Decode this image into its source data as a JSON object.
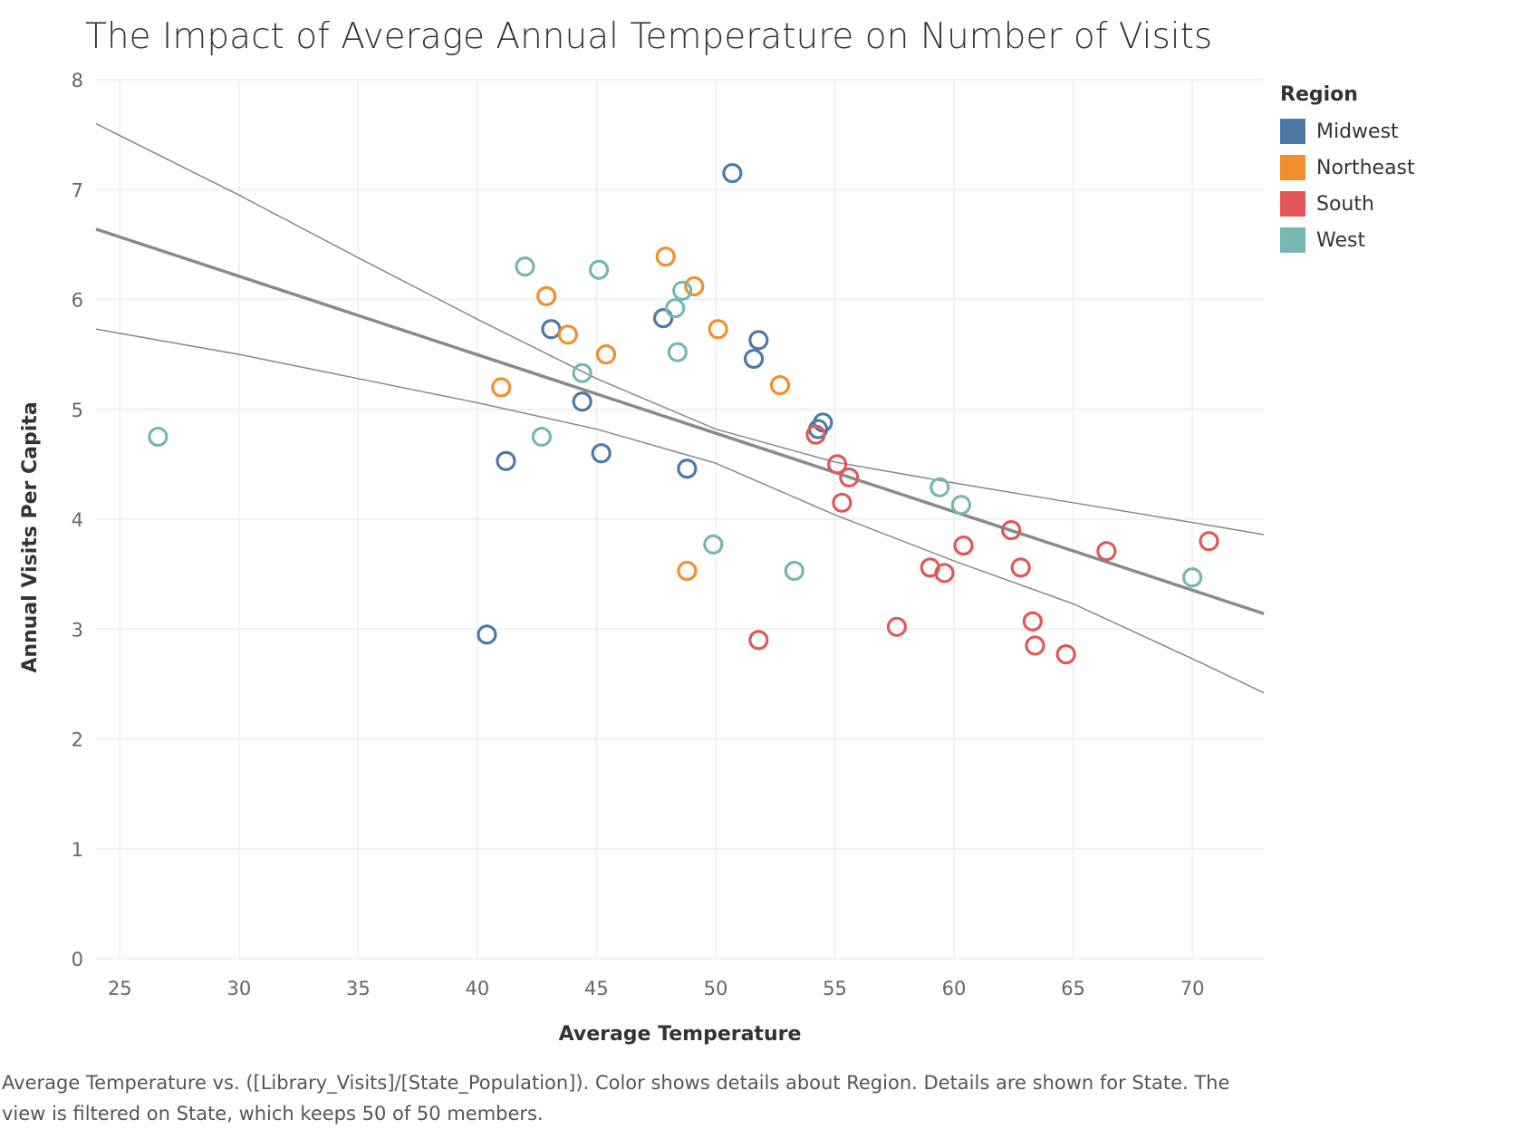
{
  "chart_data": {
    "type": "scatter",
    "title": "The Impact of Average Annual Temperature on Number of Visits",
    "xlabel": "Average Temperature",
    "ylabel": "Annual Visits Per Capita",
    "xlim": [
      24,
      73
    ],
    "ylim": [
      0,
      8
    ],
    "x_ticks": [
      25,
      30,
      35,
      40,
      45,
      50,
      55,
      60,
      65,
      70
    ],
    "y_ticks": [
      0,
      1,
      2,
      3,
      4,
      5,
      6,
      7,
      8
    ],
    "grid": true,
    "legend": {
      "title": "Region",
      "position": "right"
    },
    "series": [
      {
        "name": "Midwest",
        "color": "#4e79a7",
        "points": [
          [
            50.7,
            7.15
          ],
          [
            43.1,
            5.73
          ],
          [
            47.8,
            5.83
          ],
          [
            51.8,
            5.63
          ],
          [
            51.6,
            5.46
          ],
          [
            44.4,
            5.07
          ],
          [
            54.5,
            4.88
          ],
          [
            54.3,
            4.82
          ],
          [
            41.2,
            4.53
          ],
          [
            45.2,
            4.6
          ],
          [
            48.8,
            4.46
          ],
          [
            40.4,
            2.95
          ]
        ]
      },
      {
        "name": "Northeast",
        "color": "#f28e2b",
        "points": [
          [
            47.9,
            6.39
          ],
          [
            49.1,
            6.12
          ],
          [
            42.9,
            6.03
          ],
          [
            50.1,
            5.73
          ],
          [
            43.8,
            5.68
          ],
          [
            45.4,
            5.5
          ],
          [
            52.7,
            5.22
          ],
          [
            41.0,
            5.2
          ],
          [
            48.8,
            3.53
          ]
        ]
      },
      {
        "name": "South",
        "color": "#e15759",
        "points": [
          [
            54.2,
            4.77
          ],
          [
            55.1,
            4.5
          ],
          [
            55.6,
            4.38
          ],
          [
            55.3,
            4.15
          ],
          [
            62.4,
            3.9
          ],
          [
            70.7,
            3.8
          ],
          [
            60.4,
            3.76
          ],
          [
            66.4,
            3.71
          ],
          [
            59.0,
            3.56
          ],
          [
            62.8,
            3.56
          ],
          [
            59.6,
            3.51
          ],
          [
            57.6,
            3.02
          ],
          [
            63.3,
            3.07
          ],
          [
            51.8,
            2.9
          ],
          [
            63.4,
            2.85
          ],
          [
            64.7,
            2.77
          ]
        ]
      },
      {
        "name": "West",
        "color": "#76b7b2",
        "points": [
          [
            42.0,
            6.3
          ],
          [
            45.1,
            6.27
          ],
          [
            48.6,
            6.08
          ],
          [
            48.3,
            5.92
          ],
          [
            48.4,
            5.52
          ],
          [
            44.4,
            5.33
          ],
          [
            26.6,
            4.75
          ],
          [
            42.7,
            4.75
          ],
          [
            59.4,
            4.29
          ],
          [
            60.3,
            4.13
          ],
          [
            49.9,
            3.77
          ],
          [
            53.3,
            3.53
          ],
          [
            70.0,
            3.47
          ]
        ]
      }
    ],
    "trend_line": {
      "x": [
        24,
        73
      ],
      "y": [
        6.64,
        3.14
      ]
    },
    "confidence_upper": {
      "x": [
        24,
        30,
        35,
        40,
        45,
        50,
        55,
        60,
        65,
        70,
        73
      ],
      "y": [
        7.6,
        6.95,
        6.38,
        5.82,
        5.28,
        4.82,
        4.52,
        4.33,
        4.15,
        3.97,
        3.86
      ]
    },
    "confidence_lower": {
      "x": [
        24,
        30,
        35,
        40,
        45,
        50,
        55,
        60,
        65,
        70,
        73
      ],
      "y": [
        5.73,
        5.5,
        5.28,
        5.06,
        4.82,
        4.51,
        4.04,
        3.62,
        3.23,
        2.73,
        2.42
      ]
    }
  },
  "caption": "Average Temperature vs. ([Library_Visits]/[State_Population]).  Color shows details about Region.  Details are shown for State. The view is filtered on State, which keeps 50 of 50 members."
}
